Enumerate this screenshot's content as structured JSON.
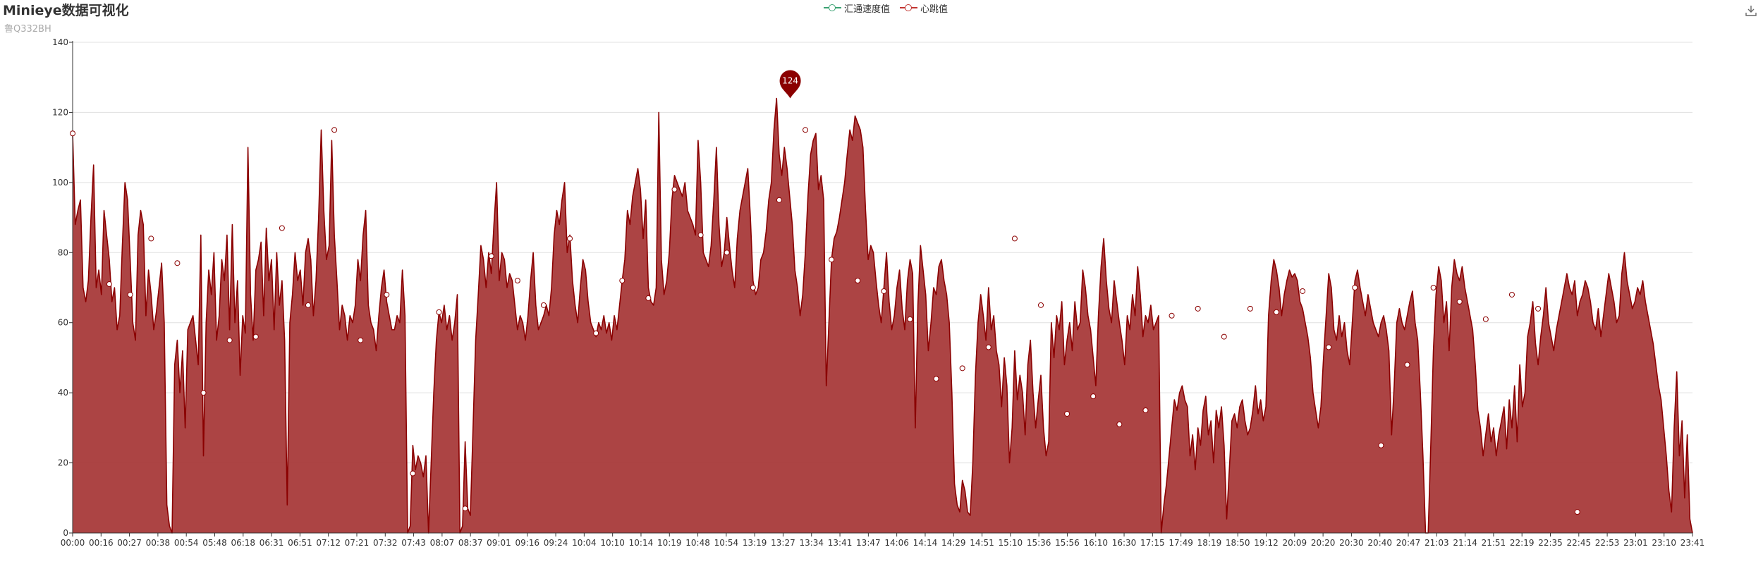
{
  "title": "Minieye数据可视化",
  "subtitle": "鲁Q332BH",
  "toolbox": {
    "download_icon": "download-icon"
  },
  "legend": [
    {
      "label": "汇通速度值",
      "color": "#3ba272"
    },
    {
      "label": "心跳值",
      "color": "#c23531"
    }
  ],
  "colors": {
    "line": "#8b0000",
    "area": "#a83a3a",
    "pin": "#8b0000",
    "grid": "#e0e0e0",
    "axis": "#333333"
  },
  "chart_data": {
    "type": "area",
    "x_ticks": [
      "00:00",
      "00:16",
      "00:27",
      "00:38",
      "00:54",
      "05:48",
      "06:18",
      "06:31",
      "06:51",
      "07:12",
      "07:21",
      "07:32",
      "07:43",
      "08:07",
      "08:37",
      "09:01",
      "09:16",
      "09:24",
      "10:04",
      "10:10",
      "10:14",
      "10:19",
      "10:48",
      "10:54",
      "13:19",
      "13:27",
      "13:34",
      "13:41",
      "13:47",
      "14:06",
      "14:14",
      "14:29",
      "14:51",
      "15:10",
      "15:36",
      "15:56",
      "16:10",
      "16:30",
      "17:15",
      "17:49",
      "18:19",
      "18:50",
      "19:12",
      "20:09",
      "20:20",
      "20:30",
      "20:40",
      "20:47",
      "21:03",
      "21:14",
      "21:51",
      "22:19",
      "22:35",
      "22:45",
      "22:53",
      "23:01",
      "23:10",
      "23:41"
    ],
    "ylim": [
      0,
      140
    ],
    "y_ticks": [
      0,
      20,
      40,
      60,
      80,
      100,
      120,
      140
    ],
    "grid": true,
    "max_label": {
      "value": 124,
      "x_fraction": 0.443
    },
    "series": [
      {
        "name": "汇通速度值",
        "values": []
      },
      {
        "name": "心跳值",
        "values": [
          114,
          88,
          92,
          95,
          70,
          66,
          72,
          90,
          105,
          70,
          75,
          68,
          92,
          85,
          78,
          66,
          70,
          58,
          62,
          82,
          100,
          95,
          78,
          60,
          55,
          85,
          92,
          88,
          62,
          75,
          68,
          58,
          63,
          70,
          77,
          60,
          8,
          2,
          0,
          48,
          55,
          40,
          52,
          30,
          58,
          60,
          62,
          55,
          48,
          85,
          22,
          60,
          75,
          68,
          80,
          55,
          62,
          78,
          72,
          85,
          58,
          88,
          60,
          72,
          45,
          62,
          57,
          110,
          68,
          55,
          75,
          78,
          83,
          62,
          87,
          72,
          78,
          58,
          80,
          65,
          72,
          55,
          8,
          60,
          68,
          80,
          72,
          75,
          65,
          80,
          84,
          78,
          62,
          72,
          90,
          115,
          92,
          78,
          82,
          112,
          85,
          72,
          58,
          65,
          62,
          55,
          62,
          60,
          65,
          78,
          72,
          85,
          92,
          65,
          60,
          58,
          52,
          62,
          70,
          75,
          66,
          62,
          58,
          58,
          62,
          60,
          75,
          62,
          0,
          2,
          25,
          18,
          22,
          20,
          16,
          22,
          0,
          20,
          40,
          55,
          63,
          60,
          65,
          58,
          62,
          55,
          60,
          68,
          0,
          2,
          26,
          7,
          5,
          30,
          55,
          68,
          82,
          78,
          70,
          80,
          74,
          88,
          100,
          72,
          80,
          78,
          70,
          74,
          72,
          65,
          58,
          62,
          60,
          55,
          62,
          72,
          80,
          65,
          58,
          60,
          62,
          65,
          62,
          70,
          85,
          92,
          88,
          95,
          100,
          80,
          85,
          72,
          65,
          60,
          70,
          78,
          75,
          66,
          60,
          58,
          56,
          60,
          58,
          62,
          57,
          60,
          55,
          62,
          58,
          65,
          72,
          78,
          92,
          88,
          96,
          100,
          104,
          98,
          84,
          95,
          70,
          66,
          65,
          70,
          120,
          78,
          68,
          72,
          80,
          95,
          102,
          100,
          98,
          96,
          100,
          92,
          90,
          88,
          85,
          112,
          100,
          80,
          78,
          76,
          82,
          95,
          110,
          88,
          76,
          80,
          90,
          82,
          75,
          70,
          84,
          92,
          96,
          100,
          104,
          90,
          72,
          68,
          70,
          78,
          80,
          86,
          95,
          100,
          115,
          124,
          108,
          102,
          110,
          104,
          96,
          88,
          75,
          70,
          62,
          68,
          80,
          96,
          108,
          112,
          114,
          98,
          102,
          95,
          42,
          60,
          78,
          84,
          86,
          90,
          95,
          100,
          108,
          115,
          112,
          119,
          117,
          115,
          110,
          92,
          78,
          82,
          80,
          72,
          65,
          60,
          70,
          80,
          66,
          58,
          62,
          70,
          75,
          64,
          58,
          72,
          78,
          74,
          30,
          65,
          82,
          75,
          68,
          52,
          60,
          70,
          68,
          76,
          78,
          72,
          68,
          60,
          40,
          14,
          8,
          6,
          15,
          12,
          6,
          5,
          20,
          45,
          60,
          68,
          62,
          55,
          70,
          58,
          62,
          52,
          48,
          36,
          50,
          42,
          20,
          30,
          52,
          38,
          45,
          40,
          28,
          48,
          55,
          40,
          30,
          38,
          45,
          30,
          22,
          26,
          60,
          50,
          62,
          58,
          66,
          48,
          55,
          60,
          52,
          66,
          58,
          60,
          75,
          70,
          62,
          58,
          50,
          42,
          62,
          76,
          84,
          72,
          64,
          60,
          72,
          66,
          60,
          55,
          48,
          62,
          58,
          68,
          62,
          76,
          68,
          56,
          62,
          60,
          65,
          58,
          60,
          62,
          0,
          8,
          14,
          22,
          30,
          38,
          35,
          40,
          42,
          38,
          36,
          22,
          28,
          18,
          30,
          25,
          35,
          39,
          28,
          32,
          20,
          35,
          30,
          36,
          25,
          4,
          18,
          32,
          34,
          30,
          36,
          38,
          32,
          28,
          30,
          35,
          42,
          34,
          38,
          32,
          36,
          62,
          72,
          78,
          75,
          70,
          62,
          68,
          72,
          75,
          73,
          74,
          72,
          66,
          64,
          60,
          56,
          50,
          40,
          35,
          30,
          36,
          50,
          62,
          74,
          70,
          58,
          55,
          62,
          56,
          60,
          52,
          48,
          60,
          72,
          75,
          70,
          66,
          62,
          68,
          64,
          60,
          58,
          56,
          60,
          62,
          58,
          52,
          28,
          42,
          60,
          64,
          60,
          58,
          62,
          66,
          69,
          60,
          55,
          40,
          22,
          0,
          0,
          25,
          52,
          68,
          76,
          72,
          60,
          66,
          52,
          70,
          78,
          74,
          72,
          76,
          70,
          66,
          62,
          58,
          48,
          35,
          30,
          22,
          28,
          34,
          26,
          30,
          22,
          28,
          32,
          36,
          24,
          38,
          30,
          42,
          26,
          48,
          36,
          40,
          56,
          60,
          66,
          54,
          48,
          56,
          62,
          70,
          60,
          56,
          52,
          58,
          62,
          66,
          70,
          74,
          70,
          68,
          72,
          62,
          66,
          68,
          72,
          70,
          66,
          60,
          58,
          64,
          56,
          62,
          68,
          74,
          70,
          66,
          60,
          62,
          74,
          80,
          72,
          68,
          64,
          66,
          70,
          68,
          72,
          66,
          62,
          58,
          54,
          48,
          42,
          38,
          30,
          22,
          12,
          6,
          30,
          46,
          22,
          32,
          10,
          28,
          4,
          0
        ]
      }
    ],
    "marker_points": [
      {
        "index": 0,
        "value": 114
      },
      {
        "index": 14,
        "value": 71
      },
      {
        "index": 22,
        "value": 68
      },
      {
        "index": 30,
        "value": 84
      },
      {
        "index": 40,
        "value": 77
      },
      {
        "index": 50,
        "value": 40
      },
      {
        "index": 60,
        "value": 55
      },
      {
        "index": 70,
        "value": 56
      },
      {
        "index": 80,
        "value": 87
      },
      {
        "index": 90,
        "value": 65
      },
      {
        "index": 100,
        "value": 115
      },
      {
        "index": 110,
        "value": 55
      },
      {
        "index": 120,
        "value": 68
      },
      {
        "index": 130,
        "value": 17
      },
      {
        "index": 140,
        "value": 63
      },
      {
        "index": 150,
        "value": 7
      },
      {
        "index": 160,
        "value": 79
      },
      {
        "index": 170,
        "value": 72
      },
      {
        "index": 180,
        "value": 65
      },
      {
        "index": 190,
        "value": 84
      },
      {
        "index": 200,
        "value": 57
      },
      {
        "index": 210,
        "value": 72
      },
      {
        "index": 220,
        "value": 67
      },
      {
        "index": 230,
        "value": 98
      },
      {
        "index": 240,
        "value": 85
      },
      {
        "index": 250,
        "value": 80
      },
      {
        "index": 260,
        "value": 70
      },
      {
        "index": 270,
        "value": 95
      },
      {
        "index": 280,
        "value": 115
      },
      {
        "index": 290,
        "value": 78
      },
      {
        "index": 300,
        "value": 72
      },
      {
        "index": 310,
        "value": 69
      },
      {
        "index": 320,
        "value": 61
      },
      {
        "index": 330,
        "value": 44
      },
      {
        "index": 340,
        "value": 47
      },
      {
        "index": 350,
        "value": 53
      },
      {
        "index": 360,
        "value": 84
      },
      {
        "index": 370,
        "value": 65
      },
      {
        "index": 380,
        "value": 34
      },
      {
        "index": 390,
        "value": 39
      },
      {
        "index": 400,
        "value": 31
      },
      {
        "index": 410,
        "value": 35
      },
      {
        "index": 420,
        "value": 62
      },
      {
        "index": 430,
        "value": 64
      },
      {
        "index": 440,
        "value": 56
      },
      {
        "index": 450,
        "value": 64
      },
      {
        "index": 460,
        "value": 63
      },
      {
        "index": 470,
        "value": 69
      },
      {
        "index": 480,
        "value": 53
      },
      {
        "index": 490,
        "value": 70
      },
      {
        "index": 500,
        "value": 25
      },
      {
        "index": 510,
        "value": 48
      },
      {
        "index": 520,
        "value": 70
      },
      {
        "index": 530,
        "value": 66
      },
      {
        "index": 540,
        "value": 61
      },
      {
        "index": 550,
        "value": 68
      },
      {
        "index": 560,
        "value": 64
      },
      {
        "index": 575,
        "value": 6
      }
    ]
  }
}
